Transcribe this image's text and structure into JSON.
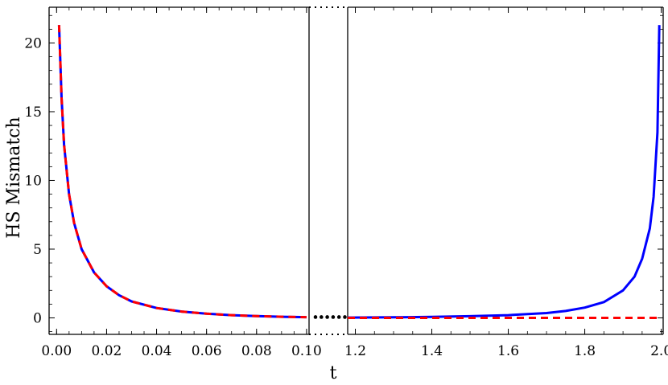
{
  "chart_data": {
    "type": "line",
    "xlabel": "t",
    "ylabel": "HS Mismatch",
    "ylim": [
      -1.2,
      22.6
    ],
    "yticks": [
      0,
      5,
      10,
      15,
      20
    ],
    "broken_x_axis": true,
    "segments": [
      {
        "xlim": [
          -0.003,
          0.101
        ],
        "xticks": [
          "0.00",
          "0.02",
          "0.04",
          "0.06",
          "0.08",
          "0.10"
        ]
      },
      {
        "xlim": [
          1.18,
          2.005
        ],
        "xticks": [
          "1.2",
          "1.4",
          "1.6",
          "1.8",
          "2.0"
        ]
      }
    ],
    "series": [
      {
        "color": "#0000ff",
        "style": "solid",
        "segment_points": [
          [
            [
              0.001,
              21.3
            ],
            [
              0.002,
              16.0
            ],
            [
              0.003,
              12.6
            ],
            [
              0.005,
              9.0
            ],
            [
              0.007,
              6.9
            ],
            [
              0.01,
              5.0
            ],
            [
              0.015,
              3.3
            ],
            [
              0.02,
              2.3
            ],
            [
              0.025,
              1.65
            ],
            [
              0.03,
              1.2
            ],
            [
              0.04,
              0.72
            ],
            [
              0.05,
              0.46
            ],
            [
              0.06,
              0.3
            ],
            [
              0.07,
              0.2
            ],
            [
              0.08,
              0.13
            ],
            [
              0.09,
              0.08
            ],
            [
              0.1,
              0.05
            ]
          ],
          [
            [
              1.18,
              0.02
            ],
            [
              1.3,
              0.04
            ],
            [
              1.4,
              0.07
            ],
            [
              1.5,
              0.12
            ],
            [
              1.6,
              0.2
            ],
            [
              1.7,
              0.35
            ],
            [
              1.75,
              0.5
            ],
            [
              1.8,
              0.75
            ],
            [
              1.85,
              1.15
            ],
            [
              1.9,
              2.0
            ],
            [
              1.93,
              3.0
            ],
            [
              1.95,
              4.3
            ],
            [
              1.97,
              6.5
            ],
            [
              1.98,
              8.8
            ],
            [
              1.99,
              13.5
            ],
            [
              1.995,
              21.3
            ]
          ]
        ]
      },
      {
        "color": "#ff0000",
        "style": "dashed",
        "segment_points": [
          [
            [
              0.001,
              21.3
            ],
            [
              0.002,
              16.0
            ],
            [
              0.003,
              12.6
            ],
            [
              0.005,
              9.0
            ],
            [
              0.007,
              6.9
            ],
            [
              0.01,
              5.0
            ],
            [
              0.015,
              3.3
            ],
            [
              0.02,
              2.3
            ],
            [
              0.025,
              1.65
            ],
            [
              0.03,
              1.2
            ],
            [
              0.04,
              0.72
            ],
            [
              0.05,
              0.46
            ],
            [
              0.06,
              0.3
            ],
            [
              0.07,
              0.2
            ],
            [
              0.08,
              0.13
            ],
            [
              0.09,
              0.08
            ],
            [
              0.1,
              0.05
            ]
          ],
          [
            [
              1.18,
              0.0
            ],
            [
              1.5,
              0.0
            ],
            [
              2.0,
              0.0
            ]
          ]
        ]
      }
    ],
    "break_marker": "......"
  }
}
